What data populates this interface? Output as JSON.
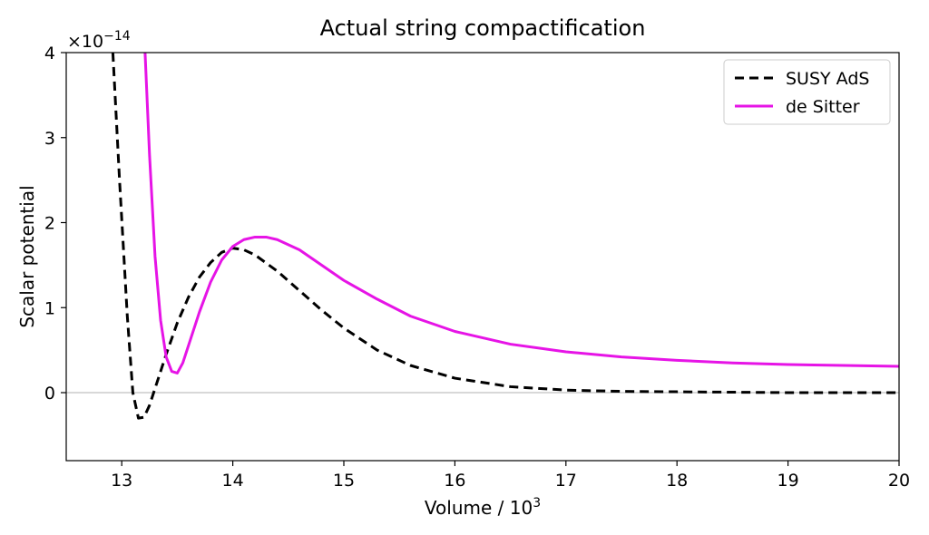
{
  "chart_data": {
    "type": "line",
    "title": "Actual string compactification",
    "xlabel": "Volume",
    "xlabel_unit_base": "10",
    "xlabel_unit_exp": "3",
    "ylabel": "Scalar potential",
    "y_scale_base": "×10",
    "y_scale_exp": "−14",
    "xlim": [
      12.5,
      20
    ],
    "ylim": [
      -0.8,
      4
    ],
    "xticks": [
      13,
      14,
      15,
      16,
      17,
      18,
      19,
      20
    ],
    "yticks": [
      0,
      1,
      2,
      3,
      4
    ],
    "grid": false,
    "zero_line": true,
    "legend_position": "top-right",
    "series": [
      {
        "name": "SUSY AdS",
        "color": "#000000",
        "style": "dashed",
        "x": [
          12.92,
          12.98,
          13.05,
          13.1,
          13.15,
          13.2,
          13.25,
          13.3,
          13.4,
          13.5,
          13.6,
          13.7,
          13.8,
          13.9,
          14.0,
          14.1,
          14.2,
          14.4,
          14.6,
          14.8,
          15.0,
          15.3,
          15.6,
          16.0,
          16.5,
          17.0,
          17.5,
          18.0,
          18.5,
          19.0,
          19.5,
          20.0
        ],
        "y": [
          4.0,
          2.5,
          0.9,
          0.0,
          -0.3,
          -0.29,
          -0.15,
          0.05,
          0.45,
          0.82,
          1.12,
          1.36,
          1.53,
          1.65,
          1.7,
          1.68,
          1.62,
          1.43,
          1.2,
          0.97,
          0.76,
          0.5,
          0.32,
          0.17,
          0.07,
          0.03,
          0.015,
          0.01,
          0.005,
          0.0,
          0.0,
          0.0
        ]
      },
      {
        "name": "de Sitter",
        "color": "#e614e6",
        "style": "solid",
        "x": [
          13.21,
          13.25,
          13.3,
          13.35,
          13.4,
          13.45,
          13.5,
          13.55,
          13.6,
          13.7,
          13.8,
          13.9,
          14.0,
          14.1,
          14.2,
          14.3,
          14.4,
          14.6,
          14.8,
          15.0,
          15.3,
          15.6,
          16.0,
          16.5,
          17.0,
          17.5,
          18.0,
          18.5,
          19.0,
          19.5,
          20.0
        ],
        "y": [
          4.0,
          2.8,
          1.6,
          0.85,
          0.42,
          0.25,
          0.23,
          0.35,
          0.55,
          0.95,
          1.3,
          1.56,
          1.72,
          1.8,
          1.83,
          1.83,
          1.8,
          1.68,
          1.5,
          1.32,
          1.1,
          0.9,
          0.72,
          0.57,
          0.48,
          0.42,
          0.38,
          0.35,
          0.33,
          0.32,
          0.31
        ]
      }
    ]
  }
}
